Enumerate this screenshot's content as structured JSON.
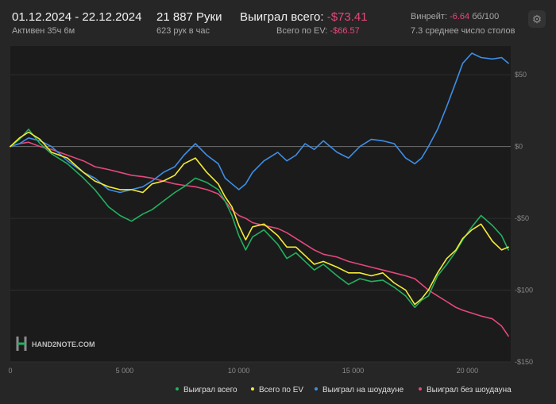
{
  "header": {
    "date_range": "01.12.2024 - 22.12.2024",
    "active_time": "Активен 35ч 6м",
    "hands": "21 887 Руки",
    "hands_per_hour": "623 рук в час",
    "won_total_label": "Выиграл всего:",
    "won_total_value": "-$73.41",
    "ev_total_label": "Всего по EV:",
    "ev_total_value": "-$66.57",
    "winrate_label": "Винрейт:",
    "winrate_value": "-6.64",
    "winrate_unit": "бб/100",
    "avg_tables": "7.3 среднее число столов"
  },
  "settings_icon": "gear-icon",
  "watermark": "HAND2NOTE.COM",
  "colors": {
    "background": "#262626",
    "plot_background": "#1b1b1b",
    "won_total": "#22b060",
    "ev_total": "#f4ec35",
    "showdown": "#3d8ee6",
    "non_showdown": "#e5487a",
    "negative_text": "#e5487a"
  },
  "chart_data": {
    "type": "line",
    "x_ticks": [
      0,
      5000,
      10000,
      15000,
      20000
    ],
    "x_tick_labels": [
      "0",
      "5 000",
      "10 000",
      "15 000",
      "20 000"
    ],
    "y_ticks": [
      50,
      0,
      -50,
      -100,
      -150
    ],
    "y_tick_labels": [
      "$50",
      "$0",
      "-$50",
      "-$100",
      "-$150"
    ],
    "xlim": [
      0,
      21900
    ],
    "ylim": [
      -150,
      70
    ],
    "grid": "horizontal",
    "legend_position": "bottom-right",
    "series": [
      {
        "name": "Выиграл всего",
        "color": "#22b060",
        "x": [
          0,
          400,
          800,
          1300,
          1800,
          2500,
          3200,
          3700,
          4300,
          4800,
          5300,
          5800,
          6200,
          6700,
          7200,
          7600,
          8100,
          8600,
          9100,
          9400,
          9700,
          10000,
          10300,
          10600,
          11100,
          11700,
          12100,
          12500,
          12900,
          13300,
          13700,
          14300,
          14800,
          15300,
          15800,
          16300,
          16800,
          17300,
          17700,
          18000,
          18300,
          18700,
          19100,
          19500,
          19800,
          20200,
          20600,
          21100,
          21500,
          21800
        ],
        "values": [
          0,
          5,
          12,
          2,
          -5,
          -12,
          -22,
          -30,
          -42,
          -48,
          -52,
          -47,
          -44,
          -38,
          -32,
          -28,
          -22,
          -25,
          -30,
          -38,
          -48,
          -62,
          -72,
          -63,
          -58,
          -68,
          -78,
          -74,
          -80,
          -86,
          -82,
          -90,
          -96,
          -92,
          -94,
          -93,
          -98,
          -104,
          -112,
          -107,
          -104,
          -90,
          -82,
          -73,
          -65,
          -56,
          -48,
          -55,
          -62,
          -72
        ]
      },
      {
        "name": "Всего по EV",
        "color": "#f4ec35",
        "x": [
          0,
          400,
          800,
          1300,
          1800,
          2500,
          3200,
          3700,
          4300,
          4800,
          5300,
          5800,
          6200,
          6700,
          7200,
          7600,
          8100,
          8600,
          9100,
          9400,
          9700,
          10000,
          10300,
          10600,
          11100,
          11700,
          12100,
          12500,
          12900,
          13300,
          13700,
          14300,
          14800,
          15300,
          15800,
          16300,
          16800,
          17300,
          17700,
          18000,
          18300,
          18700,
          19100,
          19500,
          19800,
          20200,
          20600,
          21100,
          21500,
          21800
        ],
        "values": [
          0,
          6,
          10,
          5,
          -4,
          -8,
          -18,
          -24,
          -28,
          -30,
          -30,
          -32,
          -26,
          -24,
          -20,
          -12,
          -8,
          -18,
          -26,
          -35,
          -42,
          -55,
          -65,
          -56,
          -54,
          -62,
          -70,
          -70,
          -76,
          -82,
          -80,
          -84,
          -88,
          -88,
          -90,
          -88,
          -95,
          -100,
          -110,
          -106,
          -100,
          -88,
          -78,
          -72,
          -64,
          -58,
          -54,
          -66,
          -72,
          -70
        ]
      },
      {
        "name": "Выиграл на шоудауне",
        "color": "#3d8ee6",
        "x": [
          0,
          400,
          800,
          1300,
          1800,
          2500,
          3200,
          3700,
          4300,
          4800,
          5300,
          5800,
          6200,
          6700,
          7200,
          7600,
          8100,
          8600,
          9100,
          9400,
          9700,
          10000,
          10300,
          10600,
          11100,
          11700,
          12100,
          12500,
          12900,
          13300,
          13700,
          14300,
          14800,
          15300,
          15800,
          16300,
          16800,
          17300,
          17700,
          18000,
          18300,
          18700,
          19100,
          19500,
          19800,
          20200,
          20600,
          21100,
          21500,
          21800
        ],
        "values": [
          0,
          2,
          6,
          4,
          0,
          -10,
          -18,
          -22,
          -30,
          -32,
          -30,
          -28,
          -24,
          -18,
          -14,
          -6,
          2,
          -6,
          -12,
          -22,
          -26,
          -30,
          -26,
          -18,
          -10,
          -4,
          -10,
          -6,
          2,
          -2,
          4,
          -4,
          -8,
          0,
          5,
          4,
          2,
          -8,
          -12,
          -8,
          0,
          12,
          28,
          45,
          58,
          65,
          62,
          61,
          62,
          58
        ]
      },
      {
        "name": "Выиграл без шоудауна",
        "color": "#e5487a",
        "x": [
          0,
          400,
          800,
          1300,
          1800,
          2500,
          3200,
          3700,
          4300,
          4800,
          5300,
          5800,
          6200,
          6700,
          7200,
          7600,
          8100,
          8600,
          9100,
          9400,
          9700,
          10000,
          10300,
          10600,
          11100,
          11700,
          12100,
          12500,
          12900,
          13300,
          13700,
          14300,
          14800,
          15300,
          15800,
          16300,
          16800,
          17300,
          17700,
          18000,
          18300,
          18700,
          19100,
          19500,
          19800,
          20200,
          20600,
          21100,
          21500,
          21800
        ],
        "values": [
          0,
          2,
          3,
          0,
          -2,
          -6,
          -10,
          -14,
          -16,
          -18,
          -20,
          -21,
          -22,
          -24,
          -26,
          -27,
          -28,
          -30,
          -33,
          -38,
          -44,
          -48,
          -50,
          -53,
          -55,
          -57,
          -60,
          -64,
          -68,
          -72,
          -75,
          -77,
          -80,
          -82,
          -84,
          -86,
          -88,
          -90,
          -92,
          -96,
          -100,
          -104,
          -108,
          -112,
          -114,
          -116,
          -118,
          -120,
          -125,
          -132
        ]
      }
    ]
  }
}
